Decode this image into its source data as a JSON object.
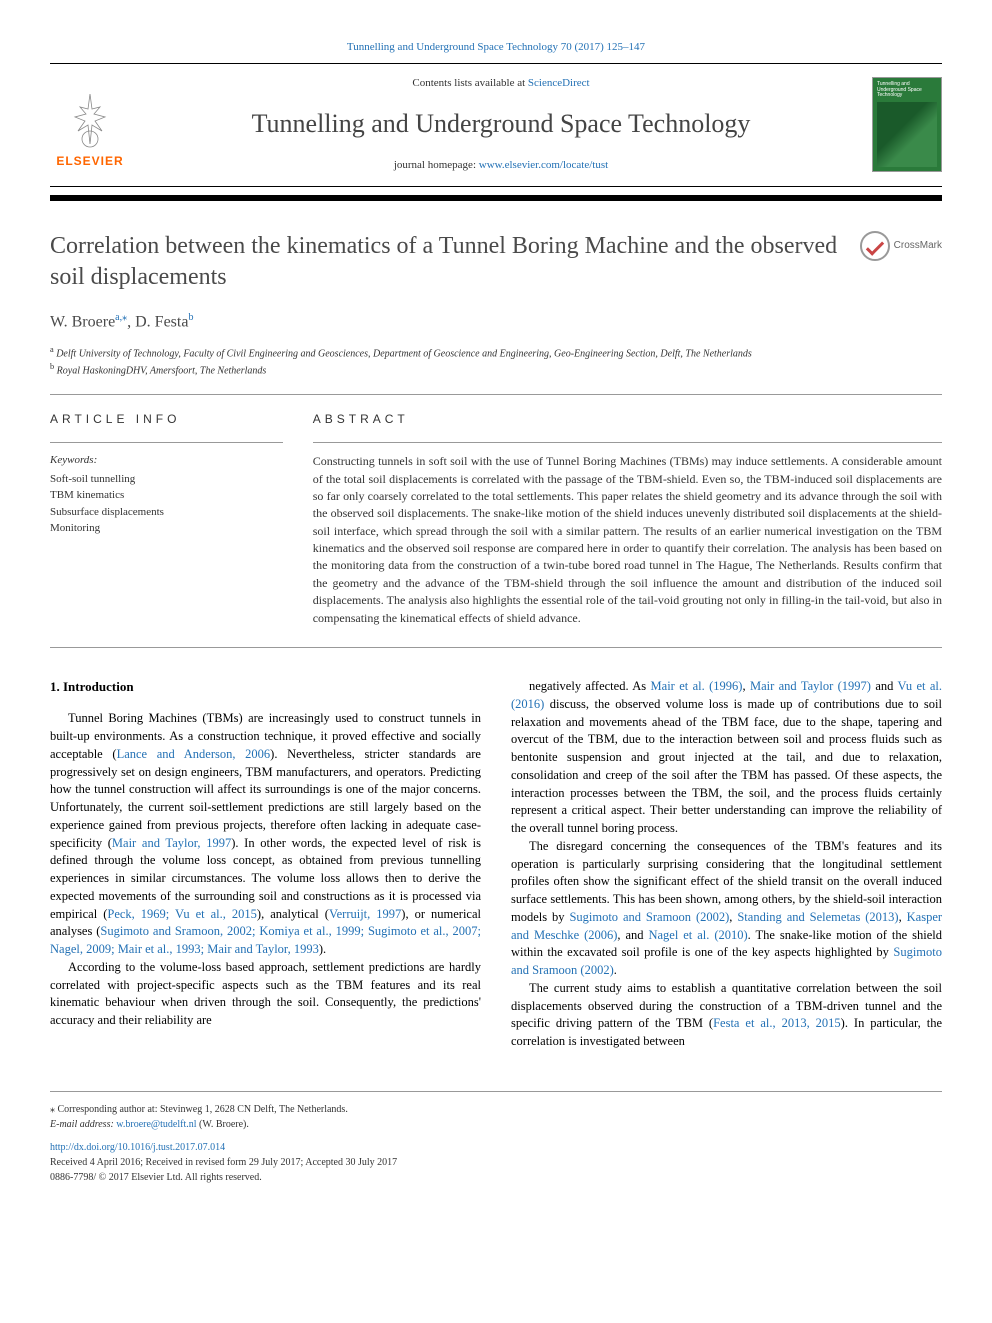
{
  "top_citation": "Tunnelling and Underground Space Technology 70 (2017) 125–147",
  "header": {
    "contents_prefix": "Contents lists available at ",
    "contents_link": "ScienceDirect",
    "journal_title": "Tunnelling and Underground Space Technology",
    "homepage_prefix": "journal homepage: ",
    "homepage_link": "www.elsevier.com/locate/tust",
    "publisher": "ELSEVIER",
    "cover_title": "Tunnelling and Underground Space Technology"
  },
  "article": {
    "title": "Correlation between the kinematics of a Tunnel Boring Machine and the observed soil displacements",
    "crossmark": "CrossMark",
    "authors_html": "W. Broere<sup>a,⁎</sup>, D. Festa<sup>b</sup>",
    "affiliations": [
      "a Delft University of Technology, Faculty of Civil Engineering and Geosciences, Department of Geoscience and Engineering, Geo-Engineering Section, Delft, The Netherlands",
      "b Royal HaskoningDHV, Amersfoort, The Netherlands"
    ]
  },
  "info": {
    "heading": "ARTICLE INFO",
    "keywords_label": "Keywords:",
    "keywords": [
      "Soft-soil tunnelling",
      "TBM kinematics",
      "Subsurface displacements",
      "Monitoring"
    ]
  },
  "abstract": {
    "heading": "ABSTRACT",
    "text": "Constructing tunnels in soft soil with the use of Tunnel Boring Machines (TBMs) may induce settlements. A considerable amount of the total soil displacements is correlated with the passage of the TBM-shield. Even so, the TBM-induced soil displacements are so far only coarsely correlated to the total settlements. This paper relates the shield geometry and its advance through the soil with the observed soil displacements. The snake-like motion of the shield induces unevenly distributed soil displacements at the shield-soil interface, which spread through the soil with a similar pattern. The results of an earlier numerical investigation on the TBM kinematics and the observed soil response are compared here in order to quantify their correlation. The analysis has been based on the monitoring data from the construction of a twin-tube bored road tunnel in The Hague, The Netherlands. Results confirm that the geometry and the advance of the TBM-shield through the soil influence the amount and distribution of the induced soil displacements. The analysis also highlights the essential role of the tail-void grouting not only in filling-in the tail-void, but also in compensating the kinematical effects of shield advance."
  },
  "body": {
    "heading": "1. Introduction",
    "paragraphs": [
      "Tunnel Boring Machines (TBMs) are increasingly used to construct tunnels in built-up environments. As a construction technique, it proved effective and socially acceptable (<span class='ref-link'>Lance and Anderson, 2006</span>). Nevertheless, stricter standards are progressively set on design engineers, TBM manufacturers, and operators. Predicting how the tunnel construction will affect its surroundings is one of the major concerns. Unfortunately, the current soil-settlement predictions are still largely based on the experience gained from previous projects, therefore often lacking in adequate case-specificity (<span class='ref-link'>Mair and Taylor, 1997</span>). In other words, the expected level of risk is defined through the volume loss concept, as obtained from previous tunnelling experiences in similar circumstances. The volume loss allows then to derive the expected movements of the surrounding soil and constructions as it is processed via empirical (<span class='ref-link'>Peck, 1969; Vu et al., 2015</span>), analytical (<span class='ref-link'>Verruijt, 1997</span>), or numerical analyses (<span class='ref-link'>Sugimoto and Sramoon, 2002; Komiya et al., 1999; Sugimoto et al., 2007; Nagel, 2009; Mair et al., 1993; Mair and Taylor, 1993</span>).",
      "According to the volume-loss based approach, settlement predictions are hardly correlated with project-specific aspects such as the TBM features and its real kinematic behaviour when driven through the soil. Consequently, the predictions' accuracy and their reliability are",
      "negatively affected. As <span class='ref-link'>Mair et al. (1996)</span>, <span class='ref-link'>Mair and Taylor (1997)</span> and <span class='ref-link'>Vu et al. (2016)</span> discuss, the observed volume loss is made up of contributions due to soil relaxation and movements ahead of the TBM face, due to the shape, tapering and overcut of the TBM, due to the interaction between soil and process fluids such as bentonite suspension and grout injected at the tail, and due to relaxation, consolidation and creep of the soil after the TBM has passed. Of these aspects, the interaction processes between the TBM, the soil, and the process fluids certainly represent a critical aspect. Their better understanding can improve the reliability of the overall tunnel boring process.",
      "The disregard concerning the consequences of the TBM's features and its operation is particularly surprising considering that the longitudinal settlement profiles often show the significant effect of the shield transit on the overall induced surface settlements. This has been shown, among others, by the shield-soil interaction models by <span class='ref-link'>Sugimoto and Sramoon (2002)</span>, <span class='ref-link'>Standing and Selemetas (2013)</span>, <span class='ref-link'>Kasper and Meschke (2006)</span>, and <span class='ref-link'>Nagel et al. (2010)</span>. The snake-like motion of the shield within the excavated soil profile is one of the key aspects highlighted by <span class='ref-link'>Sugimoto and Sramoon (2002)</span>.",
      "The current study aims to establish a quantitative correlation between the soil displacements observed during the construction of a TBM-driven tunnel and the specific driving pattern of the TBM (<span class='ref-link'>Festa et al., 2013, 2015</span>). In particular, the correlation is investigated between"
    ]
  },
  "footer": {
    "corresponding": "⁎ Corresponding author at: Stevinweg 1, 2628 CN Delft, The Netherlands.",
    "email_label": "E-mail address: ",
    "email": "w.broere@tudelft.nl",
    "email_suffix": " (W. Broere).",
    "doi": "http://dx.doi.org/10.1016/j.tust.2017.07.014",
    "dates": "Received 4 April 2016; Received in revised form 29 July 2017; Accepted 30 July 2017",
    "copyright": "0886-7798/ © 2017 Elsevier Ltd. All rights reserved."
  },
  "colors": {
    "link": "#2371b5",
    "elsevier_orange": "#ff6600",
    "cover_green": "#2a7a3a",
    "text": "#333333",
    "title_gray": "#4a4a4a"
  }
}
